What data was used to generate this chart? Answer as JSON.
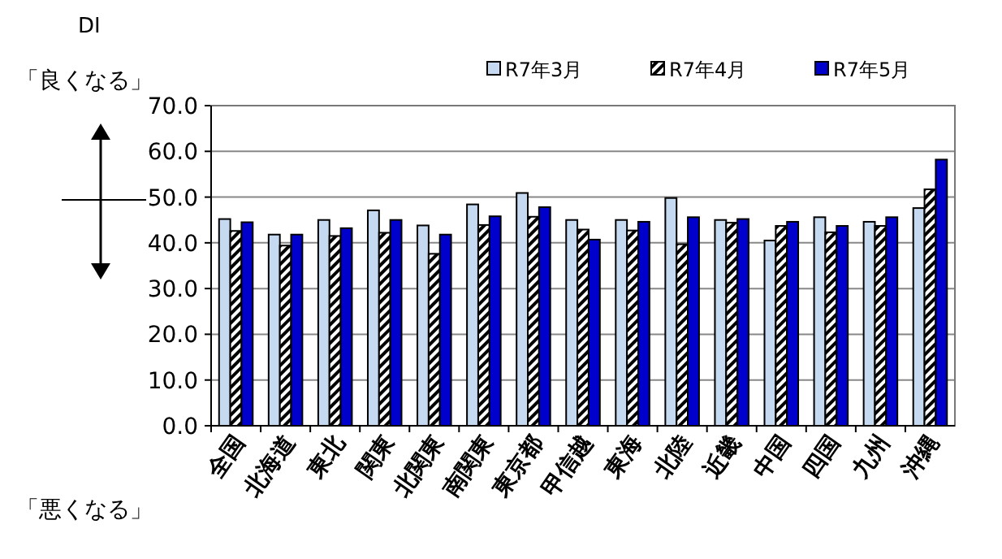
{
  "chart_data": {
    "type": "bar",
    "ylabel": "DI",
    "annotations": [
      "「良くなる」",
      "「悪くなる」"
    ],
    "categories": [
      "全国",
      "北海道",
      "東北",
      "関東",
      "北関東",
      "南関東",
      "東京都",
      "甲信越",
      "東海",
      "北陸",
      "近畿",
      "中国",
      "四国",
      "九州",
      "沖縄"
    ],
    "series": [
      {
        "name": "R7年3月",
        "color": "#c5d9f1",
        "values": [
          45.2,
          41.8,
          45.0,
          47.1,
          43.8,
          48.4,
          50.9,
          45.0,
          45.0,
          49.8,
          45.0,
          40.5,
          45.6,
          44.6,
          47.6
        ]
      },
      {
        "name": "R7年4月",
        "color": "#000000",
        "values": [
          42.6,
          39.4,
          41.5,
          42.2,
          37.6,
          43.9,
          45.7,
          42.9,
          42.7,
          39.7,
          44.4,
          43.7,
          42.3,
          43.7,
          51.7
        ]
      },
      {
        "name": "R7年5月",
        "color": "#0000cc",
        "values": [
          44.5,
          41.8,
          43.2,
          45.0,
          41.8,
          45.8,
          47.8,
          40.7,
          44.6,
          45.6,
          45.2,
          44.6,
          43.7,
          45.6,
          58.2
        ]
      }
    ],
    "ylim": [
      0,
      70
    ],
    "yticks": [
      {
        "value": 0,
        "label": "0.0"
      },
      {
        "value": 10,
        "label": "10.0"
      },
      {
        "value": 20,
        "label": "20.0"
      },
      {
        "value": 30,
        "label": "30.0"
      },
      {
        "value": 40,
        "label": "40.0"
      },
      {
        "value": 50,
        "label": "50.0"
      },
      {
        "value": 60,
        "label": "60.0"
      },
      {
        "value": 70,
        "label": "70.0"
      }
    ],
    "grid": "y",
    "legend": "top"
  }
}
